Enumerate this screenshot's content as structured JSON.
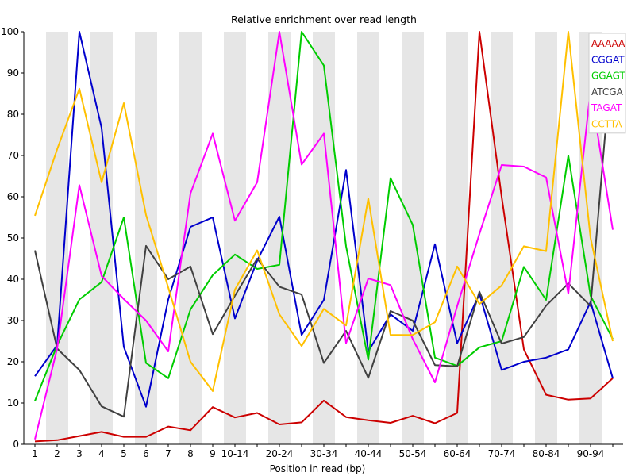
{
  "chart_data": {
    "type": "line",
    "title": "Relative enrichment over read length",
    "xlabel": "Position in read (bp)",
    "ylabel": "",
    "ylim": [
      0,
      100
    ],
    "yticks": [
      0,
      10,
      20,
      30,
      40,
      50,
      60,
      70,
      80,
      90,
      100
    ],
    "categories": [
      "1",
      "2",
      "3",
      "4",
      "5",
      "6",
      "7",
      "8",
      "9",
      "10-14",
      "15-19",
      "20-24",
      "25-29",
      "30-34",
      "35-39",
      "40-44",
      "45-49",
      "50-54",
      "55-59",
      "60-64",
      "65-69",
      "70-74",
      "75-79",
      "80-84",
      "85-89",
      "90-94",
      "95-99"
    ],
    "xtick_labels": [
      "1",
      "2",
      "3",
      "4",
      "5",
      "6",
      "7",
      "8",
      "9",
      "10-14",
      "",
      "20-24",
      "",
      "30-34",
      "",
      "40-44",
      "",
      "50-54",
      "",
      "60-64",
      "",
      "70-74",
      "",
      "80-84",
      "",
      "90-94",
      ""
    ],
    "grid": "alternating vertical bands",
    "legend_position": "top-right",
    "series": [
      {
        "name": "AAAAA",
        "color": "#cc0000",
        "values": [
          0.7,
          1.0,
          2.0,
          3.0,
          1.8,
          1.8,
          4.3,
          3.4,
          9.0,
          6.5,
          7.6,
          4.8,
          5.3,
          10.6,
          6.6,
          5.8,
          5.2,
          6.9,
          5.1,
          7.6,
          100,
          60,
          23,
          12,
          10.8,
          11.1,
          16
        ]
      },
      {
        "name": "CGGAT",
        "color": "#0000cc",
        "values": [
          16.5,
          24,
          100,
          76.7,
          23.6,
          9.1,
          35.1,
          52.7,
          55,
          30.5,
          44.5,
          55.2,
          26.5,
          35,
          66.5,
          22.5,
          31.5,
          27.5,
          48.5,
          24.5,
          36.5,
          18,
          20,
          21,
          23,
          34.5,
          16
        ]
      },
      {
        "name": "GGAGT",
        "color": "#00cc00",
        "values": [
          10.5,
          24,
          35.1,
          39.3,
          55,
          19.7,
          16,
          32.7,
          41,
          46,
          42.5,
          43.5,
          100,
          91.8,
          48,
          20.5,
          64.5,
          53.2,
          21,
          19,
          23.5,
          25,
          43,
          35,
          70,
          36,
          25.5
        ]
      },
      {
        "name": "ATCGA",
        "color": "#404040",
        "values": [
          47,
          23.2,
          18,
          9.2,
          6.7,
          48.1,
          40,
          43.1,
          26.7,
          36,
          45,
          38.2,
          36.3,
          19.7,
          27.5,
          16.1,
          32.3,
          30,
          19.2,
          18.9,
          37,
          24.4,
          26,
          33.6,
          39,
          33.5,
          97
        ]
      },
      {
        "name": "TAGAT",
        "color": "#ff00ff",
        "values": [
          1.2,
          23.2,
          62.8,
          40.8,
          35.2,
          30,
          22.5,
          60.8,
          75.3,
          54.2,
          63.5,
          100,
          67.8,
          75.3,
          24.5,
          40.2,
          38.6,
          25.5,
          15,
          33.5,
          51,
          67.7,
          67.3,
          64.7,
          36.5,
          86,
          52
        ]
      },
      {
        "name": "CCTTA",
        "color": "#ffc000",
        "values": [
          55.4,
          71.5,
          86.2,
          63.5,
          82.7,
          55.6,
          38,
          20,
          12.9,
          37.5,
          47,
          31.5,
          23.8,
          32.8,
          28.8,
          59.6,
          26.5,
          26.5,
          29.6,
          43.1,
          34,
          38.5,
          48,
          46.8,
          100,
          50,
          25
        ]
      }
    ]
  }
}
